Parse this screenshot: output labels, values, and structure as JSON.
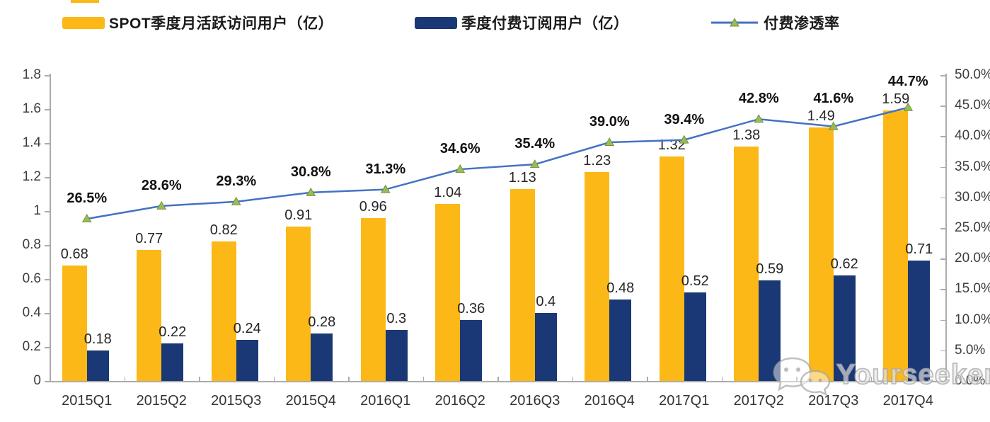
{
  "legend": [
    {
      "label": "SPOT季度月活跃访问用户（亿）",
      "color": "#FBB817",
      "type": "bar"
    },
    {
      "label": "季度付费订阅用户（亿）",
      "color": "#1B3876",
      "type": "bar"
    },
    {
      "label": "付费渗透率",
      "color": "#4472C4",
      "marker_color": "#9BBB59",
      "type": "line"
    }
  ],
  "watermark": {
    "text": "Yourseeker",
    "icon": "wechat-icon"
  },
  "chart_data": {
    "type": "bar+line combo",
    "title": "",
    "categories": [
      "2015Q1",
      "2015Q2",
      "2015Q3",
      "2015Q4",
      "2016Q1",
      "2016Q2",
      "2016Q3",
      "2016Q4",
      "2017Q1",
      "2017Q2",
      "2017Q3",
      "2017Q4"
    ],
    "series": [
      {
        "name": "SPOT季度月活跃访问用户（亿）",
        "type": "bar",
        "axis": "left",
        "color": "#FBB817",
        "values": [
          0.68,
          0.77,
          0.82,
          0.91,
          0.96,
          1.04,
          1.13,
          1.23,
          1.32,
          1.38,
          1.49,
          1.59
        ],
        "labels": [
          "0.68",
          "0.77",
          "0.82",
          "0.91",
          "0.96",
          "1.04",
          "1.13",
          "1.23",
          "1.32",
          "1.38",
          "1.49",
          "1.59"
        ]
      },
      {
        "name": "季度付费订阅用户（亿）",
        "type": "bar",
        "axis": "left",
        "color": "#1B3876",
        "values": [
          0.18,
          0.22,
          0.24,
          0.28,
          0.3,
          0.36,
          0.4,
          0.48,
          0.52,
          0.59,
          0.62,
          0.71
        ],
        "labels": [
          "0.18",
          "0.22",
          "0.24",
          "0.28",
          "0.3",
          "0.36",
          "0.4",
          "0.48",
          "0.52",
          "0.59",
          "0.62",
          "0.71"
        ]
      },
      {
        "name": "付费渗透率",
        "type": "line",
        "axis": "right",
        "color": "#4472C4",
        "marker": "triangle",
        "marker_color": "#9BBB59",
        "values": [
          26.5,
          28.6,
          29.3,
          30.8,
          31.3,
          34.6,
          35.4,
          39.0,
          39.4,
          42.8,
          41.6,
          44.7
        ],
        "labels": [
          "26.5%",
          "28.6%",
          "29.3%",
          "30.8%",
          "31.3%",
          "34.6%",
          "35.4%",
          "39.0%",
          "39.4%",
          "42.8%",
          "41.6%",
          "44.7%"
        ]
      }
    ],
    "left_axis": {
      "min": 0,
      "max": 1.8,
      "step": 0.2,
      "tick_labels": [
        "0",
        "0.2",
        "0.4",
        "0.6",
        "0.8",
        "1",
        "1.2",
        "1.4",
        "1.6",
        "1.8"
      ]
    },
    "right_axis": {
      "min": 0,
      "max": 50,
      "step": 5,
      "tick_labels": [
        "0.0%",
        "5.0%",
        "10.0%",
        "15.0%",
        "20.0%",
        "25.0%",
        "30.0%",
        "35.0%",
        "40.0%",
        "45.0%",
        "50.0%"
      ]
    },
    "grid": "off",
    "legend_position": "top",
    "colors": {
      "axis": "#ABABAB",
      "label_text": "#262626"
    }
  }
}
